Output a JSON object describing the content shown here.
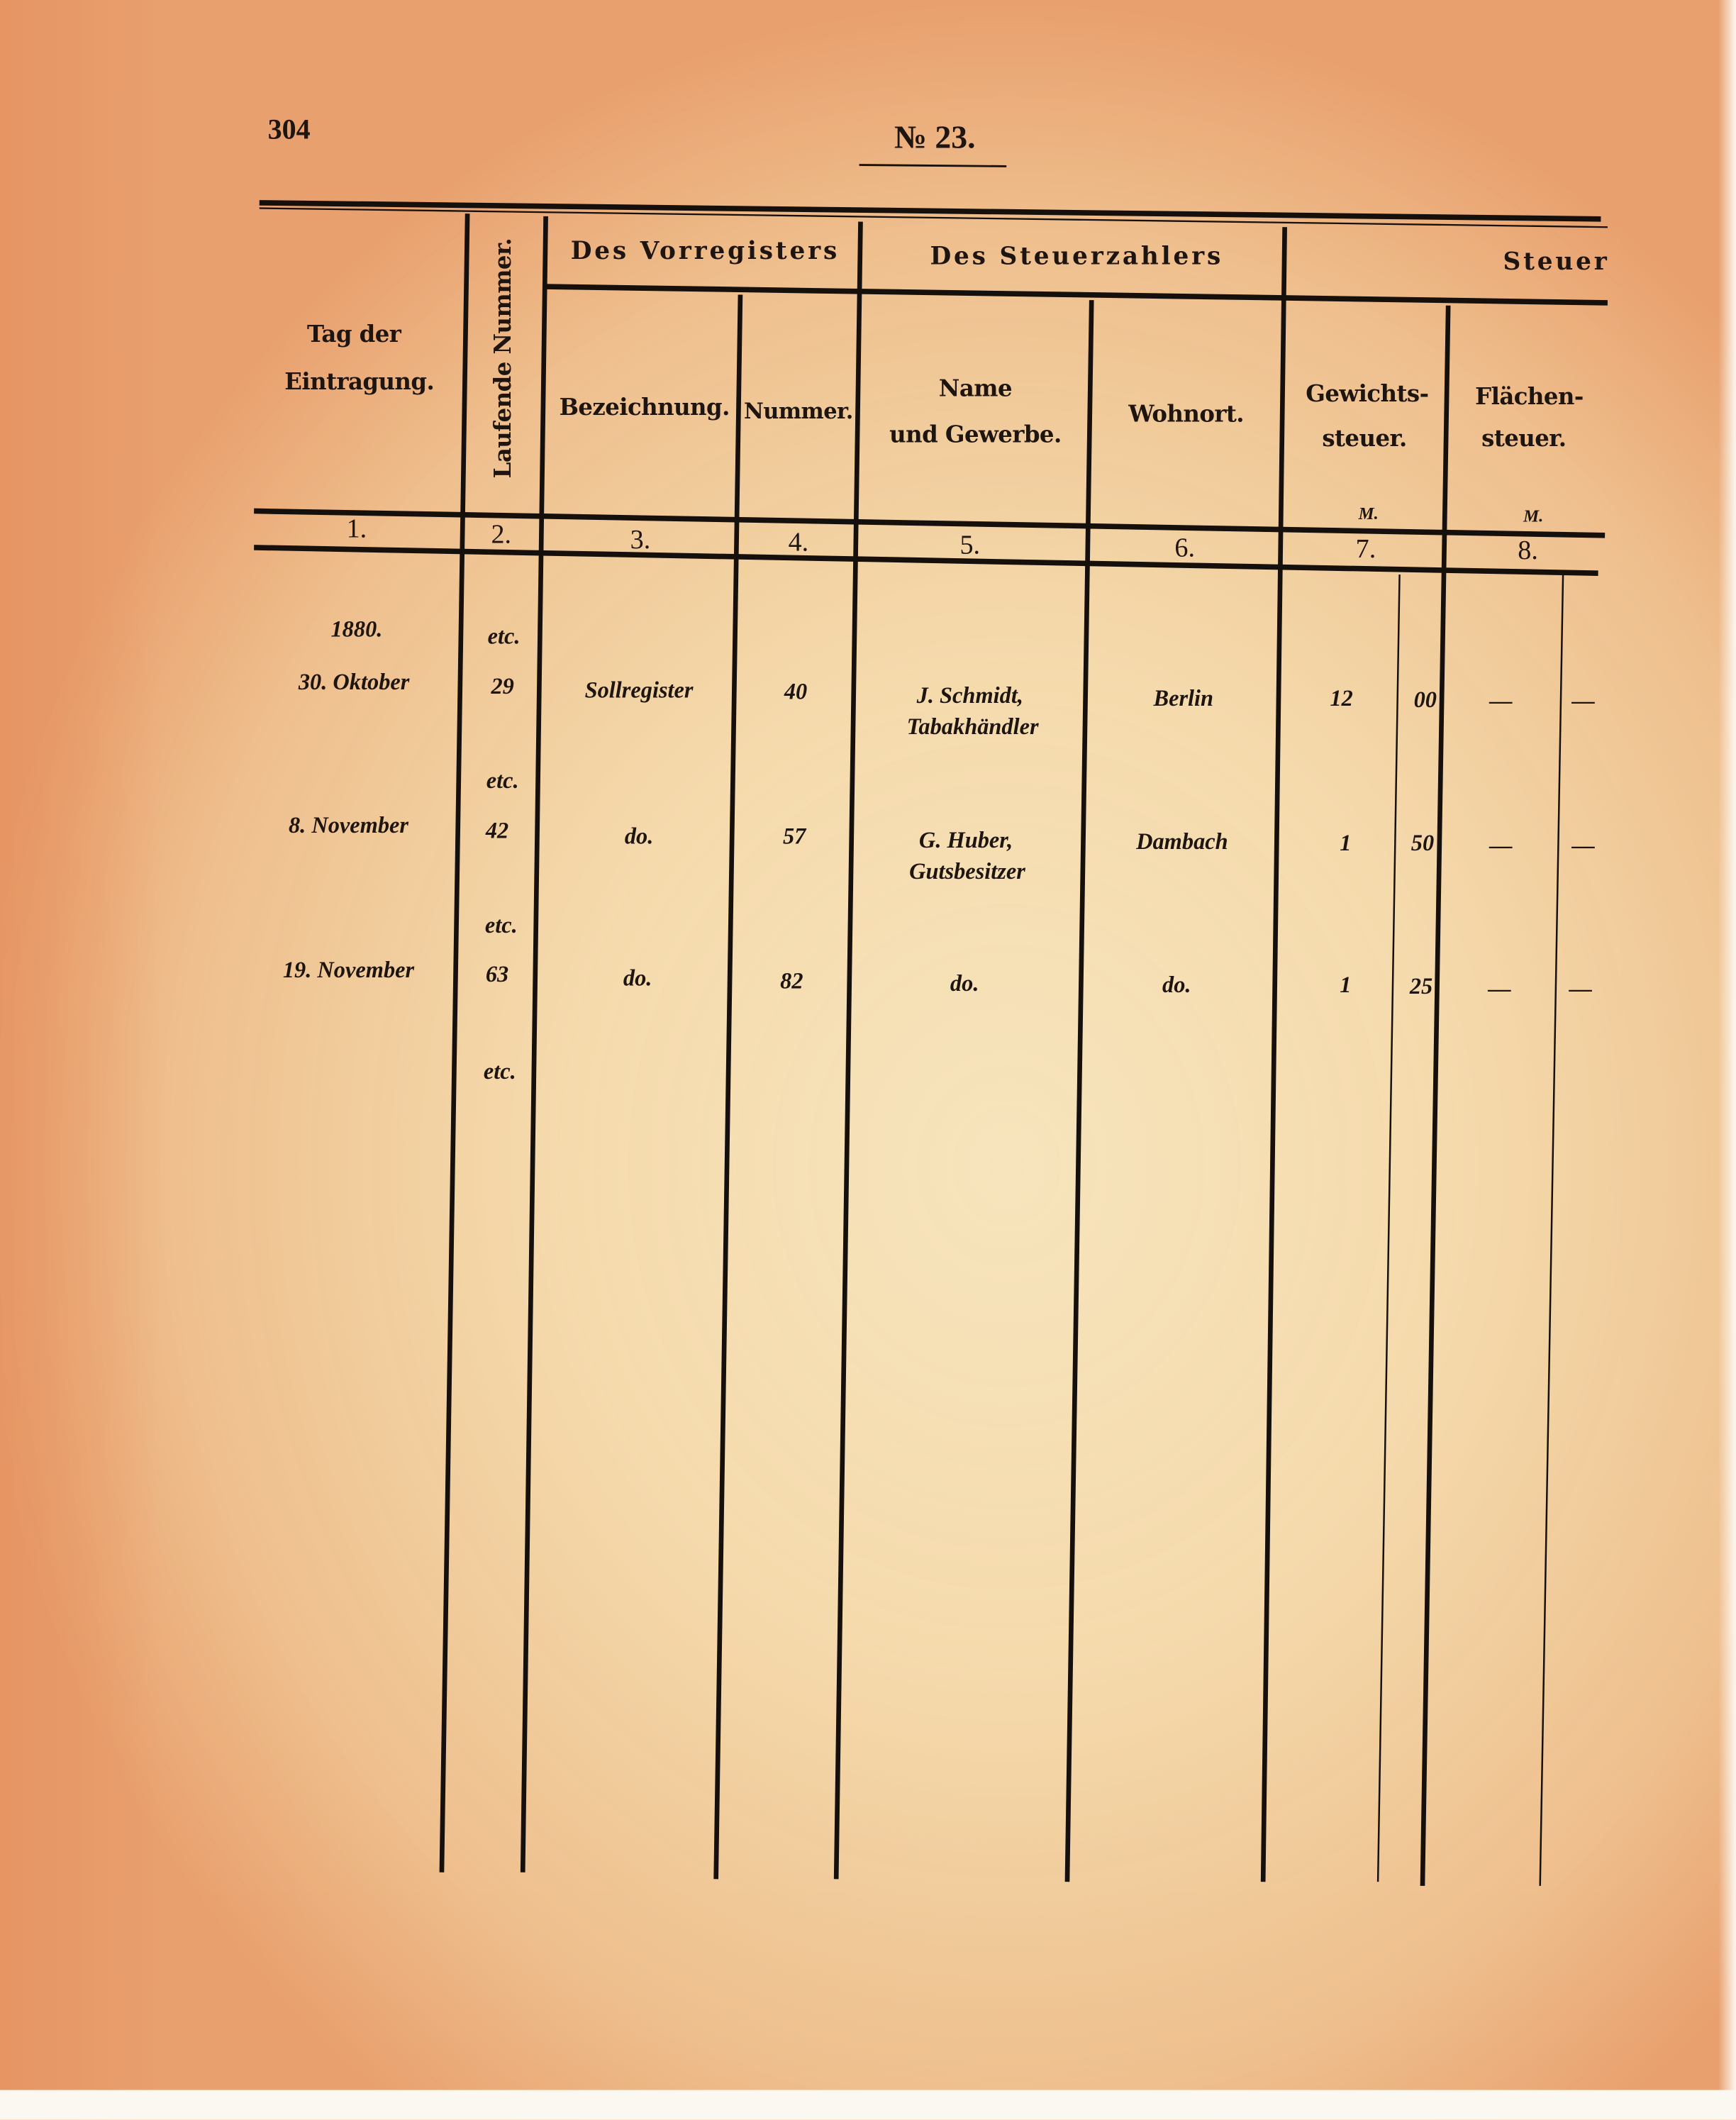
{
  "page_number": "304",
  "title": "№ 23.",
  "table": {
    "group_headers": {
      "vorregister": "Des Vorregisters",
      "steuerzahler": "Des Steuerzahlers",
      "steuer": "Steuer"
    },
    "columns": {
      "tag_line1": "Tag der",
      "tag_line2": "Eintragung.",
      "laufende_nummer": "Laufende Nummer.",
      "bezeichnung": "Bezeichnung.",
      "nummer": "Nummer.",
      "name_line1": "Name",
      "name_line2": "und Gewerbe.",
      "wohnort": "Wohnort.",
      "gewicht_line1": "Gewichts-",
      "gewicht_line2": "steuer.",
      "flaechen_line1": "Flächen-",
      "flaechen_line2": "steuer."
    },
    "currency": [
      "M.",
      "M."
    ],
    "column_numbers": [
      "1.",
      "2.",
      "3.",
      "4.",
      "5.",
      "6.",
      "7.",
      "8."
    ],
    "year": "1880.",
    "etc": [
      "etc.",
      "etc.",
      "etc.",
      "etc."
    ],
    "rows": [
      {
        "date": "30. Oktober",
        "lfd": "29",
        "bezeichnung": "Sollregister",
        "nummer": "40",
        "name": "J. Schmidt,",
        "gewerbe": "Tabakhändler",
        "wohnort": "Berlin",
        "mark": "12",
        "pf": "00",
        "flaeche_mark": "—",
        "flaeche_pf": "—"
      },
      {
        "date": "8. November",
        "lfd": "42",
        "bezeichnung": "do.",
        "nummer": "57",
        "name": "G. Huber,",
        "gewerbe": "Gutsbesitzer",
        "wohnort": "Dambach",
        "mark": "1",
        "pf": "50",
        "flaeche_mark": "—",
        "flaeche_pf": "—"
      },
      {
        "date": "19. November",
        "lfd": "63",
        "bezeichnung": "do.",
        "nummer": "82",
        "name": "do.",
        "gewerbe": "",
        "wohnort": "do.",
        "mark": "1",
        "pf": "25",
        "flaeche_mark": "—",
        "flaeche_pf": "—"
      }
    ]
  }
}
